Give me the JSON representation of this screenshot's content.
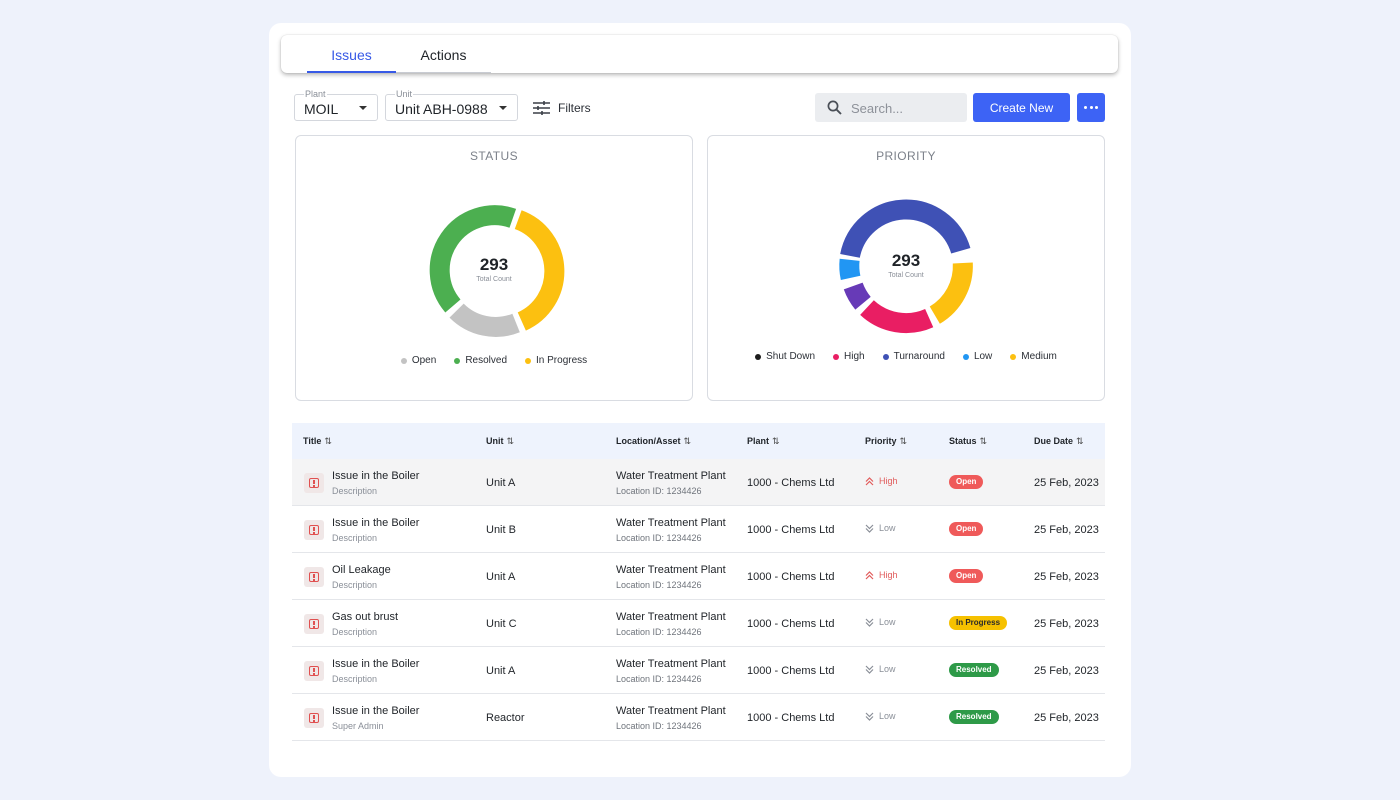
{
  "tabs": [
    {
      "label": "Issues",
      "active": true
    },
    {
      "label": "Actions",
      "active": false
    }
  ],
  "filters": {
    "plant": {
      "label": "Plant",
      "value": "MOIL"
    },
    "unit": {
      "label": "Unit",
      "value": "Unit ABH-0988"
    },
    "filters_label": "Filters"
  },
  "search": {
    "placeholder": "Search..."
  },
  "create_label": "Create New",
  "status_panel": {
    "title": "STATUS",
    "total": "293",
    "total_caption": "Total Count",
    "legend": [
      {
        "label": "Open",
        "color": "#c3c3c3"
      },
      {
        "label": "Resolved",
        "color": "#4caf50"
      },
      {
        "label": "In Progress",
        "color": "#fcc010"
      }
    ]
  },
  "priority_panel": {
    "title": "PRIORITY",
    "total": "293",
    "total_caption": "Total Count",
    "legend": [
      {
        "label": "Shut Down",
        "color": "#1c1c1c"
      },
      {
        "label": "High",
        "color": "#e91e63"
      },
      {
        "label": "Turnaround",
        "color": "#3f51b5"
      },
      {
        "label": "Low",
        "color": "#2196f3"
      },
      {
        "label": "Medium",
        "color": "#fcc010"
      }
    ]
  },
  "table": {
    "columns": [
      "Title",
      "Unit",
      "Location/Asset",
      "Plant",
      "Priority",
      "Status",
      "Due Date"
    ],
    "rows": [
      {
        "title": "Issue in the Boiler",
        "desc": "Description",
        "unit": "Unit A",
        "location": "Water Treatment Plant",
        "location_id": "Location ID: 1234426",
        "plant": "1000 - Chems Ltd",
        "priority": "High",
        "status": "Open",
        "due": "25 Feb, 2023"
      },
      {
        "title": "Issue in the Boiler",
        "desc": "Description",
        "unit": "Unit B",
        "location": "Water Treatment Plant",
        "location_id": "Location ID: 1234426",
        "plant": "1000 - Chems Ltd",
        "priority": "Low",
        "status": "Open",
        "due": "25 Feb, 2023"
      },
      {
        "title": "Oil Leakage",
        "desc": "Description",
        "unit": "Unit A",
        "location": "Water Treatment Plant",
        "location_id": "Location ID: 1234426",
        "plant": "1000 - Chems Ltd",
        "priority": "High",
        "status": "Open",
        "due": "25 Feb, 2023"
      },
      {
        "title": "Gas out brust",
        "desc": "Description",
        "unit": "Unit C",
        "location": "Water Treatment Plant",
        "location_id": "Location ID: 1234426",
        "plant": "1000 - Chems Ltd",
        "priority": "Low",
        "status": "In Progress",
        "due": "25 Feb, 2023"
      },
      {
        "title": "Issue in the Boiler",
        "desc": "Description",
        "unit": "Unit A",
        "location": "Water Treatment Plant",
        "location_id": "Location ID: 1234426",
        "plant": "1000 - Chems Ltd",
        "priority": "Low",
        "status": "Resolved",
        "due": "25 Feb, 2023"
      },
      {
        "title": "Issue in the Boiler",
        "desc": "Super Admin",
        "unit": "Reactor",
        "location": "Water Treatment Plant",
        "location_id": "Location ID: 1234426",
        "plant": "1000 - Chems Ltd",
        "priority": "Low",
        "status": "Resolved",
        "due": "25 Feb, 2023"
      }
    ]
  },
  "icons": {
    "filters": "tune-icon",
    "search": "search-icon",
    "more": "more-horizontal-icon",
    "caret": "caret-down-icon",
    "issue": "alert-square-icon",
    "sort": "sort-icon",
    "priority_high": "chevrons-up-icon",
    "priority_low": "chevrons-down-icon"
  }
}
